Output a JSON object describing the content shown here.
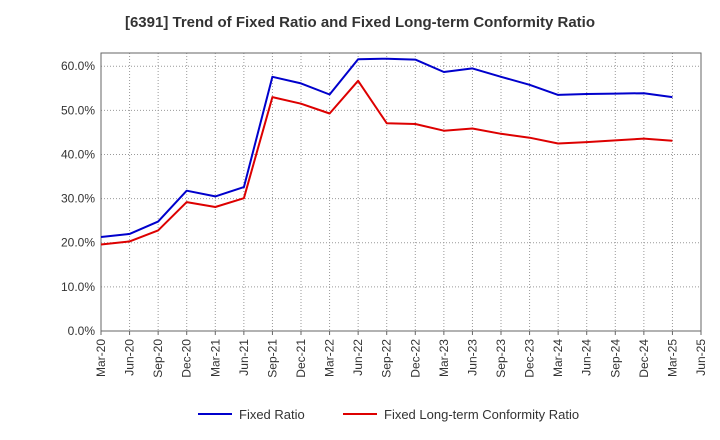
{
  "chart_data": {
    "type": "line",
    "title": "[6391]  Trend of Fixed Ratio and Fixed Long-term Conformity Ratio",
    "xlabel": "",
    "ylabel": "",
    "x": [
      "Mar-20",
      "Jun-20",
      "Sep-20",
      "Dec-20",
      "Mar-21",
      "Jun-21",
      "Sep-21",
      "Dec-21",
      "Mar-22",
      "Jun-22",
      "Sep-22",
      "Dec-22",
      "Mar-23",
      "Jun-23",
      "Sep-23",
      "Dec-23",
      "Mar-24",
      "Jun-24",
      "Sep-24",
      "Dec-24",
      "Mar-25",
      "Jun-25"
    ],
    "yticks": [
      "0.0%",
      "10.0%",
      "20.0%",
      "30.0%",
      "40.0%",
      "50.0%",
      "60.0%"
    ],
    "ylim": [
      0,
      63
    ],
    "grid": true,
    "legend_position": "bottom",
    "series": [
      {
        "name": "Fixed Ratio",
        "color": "#0000cc",
        "values": [
          21.3,
          22.0,
          24.8,
          31.8,
          30.5,
          32.6,
          57.6,
          56.1,
          53.6,
          61.6,
          61.7,
          61.5,
          58.7,
          59.5,
          57.6,
          55.8,
          53.5,
          53.7,
          53.8,
          53.9,
          53.0,
          null
        ]
      },
      {
        "name": "Fixed Long-term Conformity Ratio",
        "color": "#dd0000",
        "values": [
          19.6,
          20.3,
          22.8,
          29.2,
          28.1,
          30.1,
          53.0,
          51.5,
          49.3,
          56.7,
          47.1,
          46.9,
          45.4,
          45.9,
          44.7,
          43.8,
          42.5,
          42.8,
          43.2,
          43.6,
          43.1,
          null
        ]
      }
    ]
  }
}
